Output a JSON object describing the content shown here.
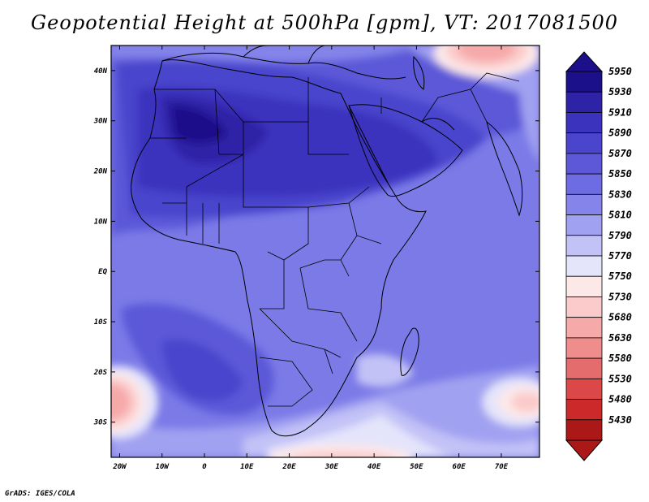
{
  "title": "Geopotential Height at 500hPa [gpm], VT: 2017081500",
  "credit": "GrADS: IGES/COLA",
  "map": {
    "lat_ticks": [
      {
        "value": 40,
        "label": "40N"
      },
      {
        "value": 30,
        "label": "30N"
      },
      {
        "value": 20,
        "label": "20N"
      },
      {
        "value": 10,
        "label": "10N"
      },
      {
        "value": 0,
        "label": "EQ"
      },
      {
        "value": -10,
        "label": "10S"
      },
      {
        "value": -20,
        "label": "20S"
      },
      {
        "value": -30,
        "label": "30S"
      }
    ],
    "lon_ticks": [
      {
        "value": -20,
        "label": "20W"
      },
      {
        "value": -10,
        "label": "10W"
      },
      {
        "value": 0,
        "label": "0"
      },
      {
        "value": 10,
        "label": "10E"
      },
      {
        "value": 20,
        "label": "20E"
      },
      {
        "value": 30,
        "label": "30E"
      },
      {
        "value": 40,
        "label": "40E"
      },
      {
        "value": 50,
        "label": "50E"
      },
      {
        "value": 60,
        "label": "60E"
      },
      {
        "value": 70,
        "label": "70E"
      }
    ],
    "lon_range": [
      -22,
      79
    ],
    "lat_range": [
      -37,
      45
    ]
  },
  "colorbar": {
    "levels": [
      "5950",
      "5930",
      "5910",
      "5890",
      "5870",
      "5850",
      "5830",
      "5810",
      "5790",
      "5770",
      "5750",
      "5730",
      "5680",
      "5630",
      "5580",
      "5530",
      "5480",
      "5430"
    ],
    "colors": [
      "#1c0f8a",
      "#2e22a6",
      "#3b33bd",
      "#4a45cc",
      "#5c58d8",
      "#6e6ce2",
      "#8584ea",
      "#a1a1f1",
      "#c2c2f7",
      "#e4e4fb",
      "#fde8e8",
      "#fbcaca",
      "#f6a9a9",
      "#ef8c8c",
      "#e56c6c",
      "#dc4848",
      "#cc2a2a",
      "#ac1818"
    ]
  },
  "icons": {
    "top_arrow": "up-triangle-icon",
    "bottom_arrow": "down-triangle-icon"
  }
}
